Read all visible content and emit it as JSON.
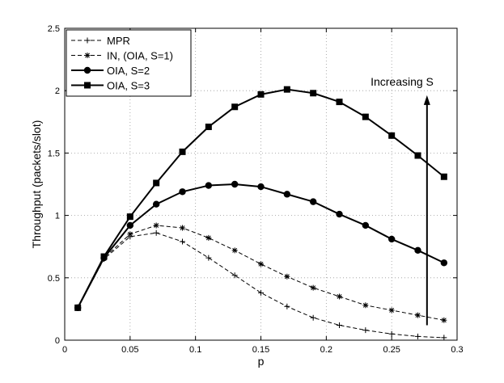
{
  "chart_data": {
    "type": "line",
    "title": "",
    "xlabel": "p",
    "ylabel": "Throughput (packets/slot)",
    "xlim": [
      0,
      0.3
    ],
    "ylim": [
      0,
      2.5
    ],
    "xticks": [
      0,
      0.05,
      0.1,
      0.15,
      0.2,
      0.25,
      0.3
    ],
    "xtick_labels": [
      "0",
      "0.05",
      "0.1",
      "0.15",
      "0.2",
      "0.25",
      "0.3"
    ],
    "yticks": [
      0,
      0.5,
      1,
      1.5,
      2,
      2.5
    ],
    "ytick_labels": [
      "0",
      "0.5",
      "1",
      "1.5",
      "2",
      "2.5"
    ],
    "grid": true,
    "legend_position": "top-left",
    "annotation": {
      "text": "Increasing S",
      "arrow_x": 0.277,
      "arrow_from": 0.12,
      "arrow_to": 1.95
    },
    "x": [
      0.01,
      0.03,
      0.05,
      0.07,
      0.09,
      0.11,
      0.13,
      0.15,
      0.17,
      0.19,
      0.21,
      0.23,
      0.25,
      0.27,
      0.29
    ],
    "series": [
      {
        "name": "MPR",
        "line_style": "dashed",
        "marker": "plus",
        "values": [
          0.26,
          0.65,
          0.83,
          0.86,
          0.79,
          0.66,
          0.52,
          0.38,
          0.27,
          0.18,
          0.12,
          0.08,
          0.05,
          0.03,
          0.02
        ]
      },
      {
        "name": "IN, (OIA, S=1)",
        "line_style": "dashed",
        "marker": "star",
        "values": [
          0.26,
          0.66,
          0.85,
          0.92,
          0.9,
          0.82,
          0.72,
          0.61,
          0.51,
          0.42,
          0.35,
          0.28,
          0.24,
          0.2,
          0.16
        ]
      },
      {
        "name": "OIA, S=2",
        "line_style": "solid",
        "marker": "circle",
        "values": [
          0.26,
          0.66,
          0.92,
          1.09,
          1.19,
          1.24,
          1.25,
          1.23,
          1.17,
          1.11,
          1.01,
          0.92,
          0.81,
          0.72,
          0.62
        ]
      },
      {
        "name": "OIA, S=3",
        "line_style": "solid",
        "marker": "square",
        "values": [
          0.26,
          0.67,
          0.99,
          1.26,
          1.51,
          1.71,
          1.87,
          1.97,
          2.01,
          1.98,
          1.91,
          1.79,
          1.64,
          1.48,
          1.31
        ]
      }
    ]
  }
}
